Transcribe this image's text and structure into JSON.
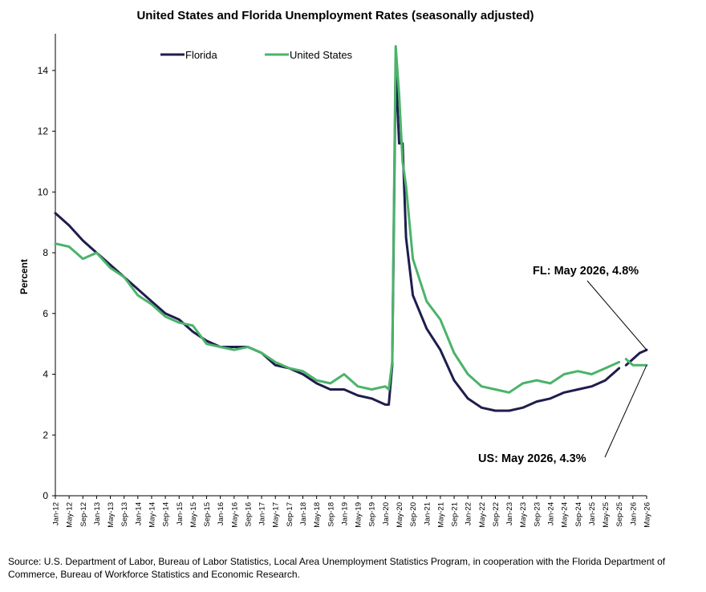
{
  "chart_data": {
    "type": "line",
    "title": "United States and Florida Unemployment Rates (seasonally adjusted)",
    "ylabel": "Percent",
    "xlabel": "",
    "ylim": [
      0,
      15
    ],
    "yticks": [
      0,
      2,
      4,
      6,
      8,
      10,
      12,
      14
    ],
    "x_range": [
      "2012-01",
      "2026-05"
    ],
    "xticks": [
      "Jan-12",
      "May-12",
      "Sep-12",
      "Jan-13",
      "May-13",
      "Sep-13",
      "Jan-14",
      "May-14",
      "Sep-14",
      "Jan-15",
      "May-15",
      "Sep-15",
      "Jan-16",
      "May-16",
      "Sep-16",
      "Jan-17",
      "May-17",
      "Sep-17",
      "Jan-18",
      "May-18",
      "Sep-18",
      "Jan-19",
      "May-19",
      "Sep-19",
      "Jan-20",
      "May-20",
      "Sep-20",
      "Jan-21",
      "May-21",
      "Sep-21",
      "Jan-22",
      "May-22",
      "Sep-22",
      "Jan-23",
      "May-23",
      "Sep-23",
      "Jan-24",
      "May-24",
      "Sep-24",
      "Jan-25",
      "May-25",
      "Sep-25",
      "Jan-26",
      "May-26"
    ],
    "grid": false,
    "legend_position": "top",
    "series": [
      {
        "name": "Florida",
        "color": "#1f1d4d",
        "points": [
          [
            "2012-01",
            9.3
          ],
          [
            "2012-05",
            8.9
          ],
          [
            "2012-09",
            8.4
          ],
          [
            "2013-01",
            8.0
          ],
          [
            "2013-05",
            7.6
          ],
          [
            "2013-09",
            7.2
          ],
          [
            "2014-01",
            6.8
          ],
          [
            "2014-05",
            6.4
          ],
          [
            "2014-09",
            6.0
          ],
          [
            "2015-01",
            5.8
          ],
          [
            "2015-05",
            5.4
          ],
          [
            "2015-09",
            5.1
          ],
          [
            "2016-01",
            4.9
          ],
          [
            "2016-05",
            4.9
          ],
          [
            "2016-09",
            4.9
          ],
          [
            "2017-01",
            4.7
          ],
          [
            "2017-05",
            4.3
          ],
          [
            "2017-09",
            4.2
          ],
          [
            "2018-01",
            4.0
          ],
          [
            "2018-05",
            3.7
          ],
          [
            "2018-09",
            3.5
          ],
          [
            "2019-01",
            3.5
          ],
          [
            "2019-05",
            3.3
          ],
          [
            "2019-09",
            3.2
          ],
          [
            "2020-01",
            3.0
          ],
          [
            "2020-02",
            3.0
          ],
          [
            "2020-03",
            4.3
          ],
          [
            "2020-04",
            14.1
          ],
          [
            "2020-05",
            11.6
          ],
          [
            "2020-06",
            11.6
          ],
          [
            "2020-07",
            8.5
          ],
          [
            "2020-09",
            6.6
          ],
          [
            "2021-01",
            5.5
          ],
          [
            "2021-05",
            4.8
          ],
          [
            "2021-09",
            3.8
          ],
          [
            "2022-01",
            3.2
          ],
          [
            "2022-05",
            2.9
          ],
          [
            "2022-09",
            2.8
          ],
          [
            "2023-01",
            2.8
          ],
          [
            "2023-05",
            2.9
          ],
          [
            "2023-09",
            3.1
          ],
          [
            "2024-01",
            3.2
          ],
          [
            "2024-05",
            3.4
          ],
          [
            "2024-09",
            3.5
          ],
          [
            "2025-01",
            3.6
          ],
          [
            "2025-05",
            3.8
          ],
          [
            "2025-09",
            4.2
          ],
          null,
          [
            "2025-11",
            4.3
          ],
          [
            "2026-01",
            4.5
          ],
          [
            "2026-03",
            4.7
          ],
          [
            "2026-05",
            4.8
          ]
        ]
      },
      {
        "name": "United States",
        "color": "#4bb36a",
        "points": [
          [
            "2012-01",
            8.3
          ],
          [
            "2012-05",
            8.2
          ],
          [
            "2012-09",
            7.8
          ],
          [
            "2013-01",
            8.0
          ],
          [
            "2013-05",
            7.5
          ],
          [
            "2013-09",
            7.2
          ],
          [
            "2014-01",
            6.6
          ],
          [
            "2014-05",
            6.3
          ],
          [
            "2014-09",
            5.9
          ],
          [
            "2015-01",
            5.7
          ],
          [
            "2015-05",
            5.6
          ],
          [
            "2015-09",
            5.0
          ],
          [
            "2016-01",
            4.9
          ],
          [
            "2016-05",
            4.8
          ],
          [
            "2016-09",
            4.9
          ],
          [
            "2017-01",
            4.7
          ],
          [
            "2017-05",
            4.4
          ],
          [
            "2017-09",
            4.2
          ],
          [
            "2018-01",
            4.1
          ],
          [
            "2018-05",
            3.8
          ],
          [
            "2018-09",
            3.7
          ],
          [
            "2019-01",
            4.0
          ],
          [
            "2019-05",
            3.6
          ],
          [
            "2019-09",
            3.5
          ],
          [
            "2020-01",
            3.6
          ],
          [
            "2020-02",
            3.5
          ],
          [
            "2020-03",
            4.4
          ],
          [
            "2020-04",
            14.8
          ],
          [
            "2020-05",
            13.2
          ],
          [
            "2020-06",
            11.0
          ],
          [
            "2020-07",
            10.2
          ],
          [
            "2020-09",
            7.8
          ],
          [
            "2021-01",
            6.4
          ],
          [
            "2021-05",
            5.8
          ],
          [
            "2021-09",
            4.7
          ],
          [
            "2022-01",
            4.0
          ],
          [
            "2022-05",
            3.6
          ],
          [
            "2022-09",
            3.5
          ],
          [
            "2023-01",
            3.4
          ],
          [
            "2023-05",
            3.7
          ],
          [
            "2023-09",
            3.8
          ],
          [
            "2024-01",
            3.7
          ],
          [
            "2024-05",
            4.0
          ],
          [
            "2024-09",
            4.1
          ],
          [
            "2025-01",
            4.0
          ],
          [
            "2025-05",
            4.2
          ],
          [
            "2025-09",
            4.4
          ],
          null,
          [
            "2025-11",
            4.5
          ],
          [
            "2026-01",
            4.3
          ],
          [
            "2026-03",
            4.3
          ],
          [
            "2026-05",
            4.3
          ]
        ]
      }
    ],
    "annotations": [
      {
        "text": "FL: May 2026, 4.8%",
        "series": "Florida",
        "x": "2026-05",
        "y": 4.8
      },
      {
        "text": "US: May 2026, 4.3%",
        "series": "United States",
        "x": "2026-05",
        "y": 4.3
      }
    ]
  },
  "source_text": "Source:  U.S. Department of Labor, Bureau of Labor Statistics, Local Area Unemployment Statistics Program, in cooperation with the Florida Department of Commerce, Bureau of Workforce Statistics and Economic Research."
}
